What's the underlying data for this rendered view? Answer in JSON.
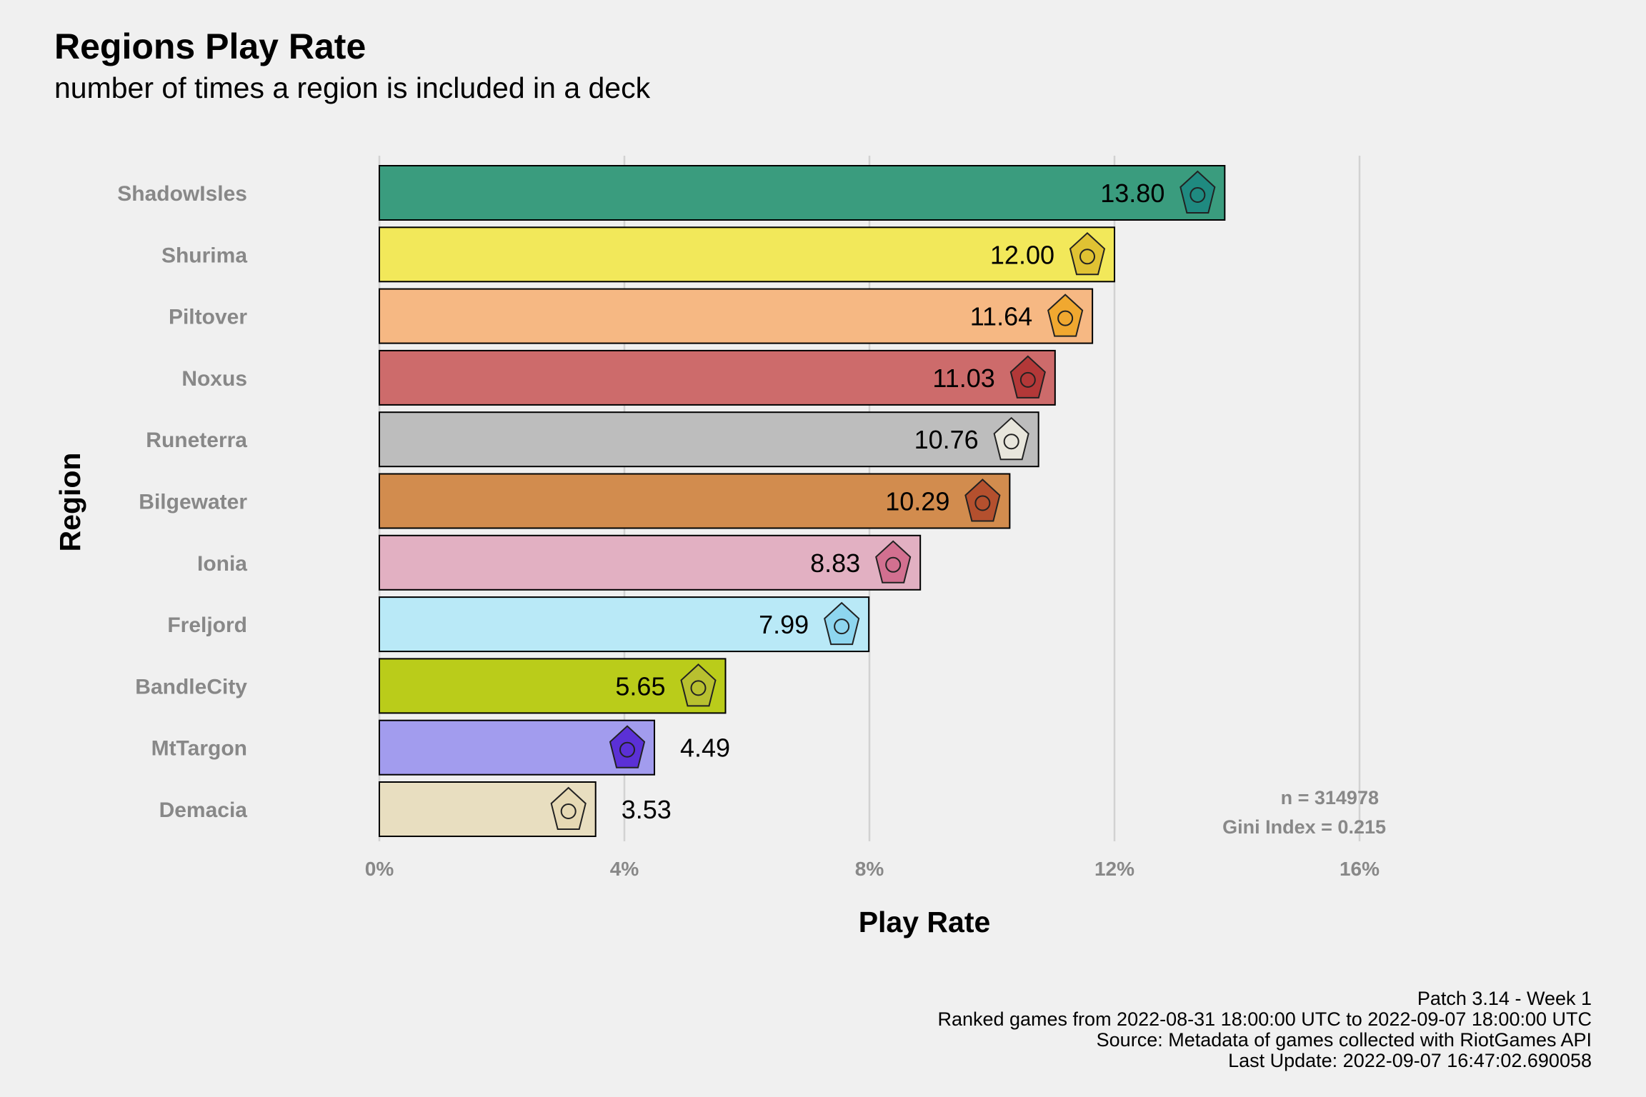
{
  "title": "Regions Play Rate",
  "subtitle": "number of times a region is included in a deck",
  "caption": [
    "Patch 3.14 - Week 1",
    "Ranked games from 2022-08-31 18:00:00 UTC to 2022-09-07 18:00:00 UTC",
    "Source: Metadata of games collected with RiotGames API",
    "Last Update: 2022-09-07 16:47:02.690058"
  ],
  "chart_data": {
    "type": "bar",
    "orientation": "horizontal",
    "xlabel": "Play Rate",
    "ylabel": "Region",
    "xlim": [
      0,
      16
    ],
    "xticks": [
      0,
      4,
      8,
      12,
      16
    ],
    "xtick_labels": [
      "0%",
      "4%",
      "8%",
      "12%",
      "16%"
    ],
    "grid": true,
    "categories": [
      "ShadowIsles",
      "Shurima",
      "Piltover",
      "Noxus",
      "Runeterra",
      "Bilgewater",
      "Ionia",
      "Freljord",
      "BandleCity",
      "MtTargon",
      "Demacia"
    ],
    "values": [
      13.8,
      12.0,
      11.64,
      11.03,
      10.76,
      10.29,
      8.83,
      7.99,
      5.65,
      4.49,
      3.53
    ],
    "value_labels": [
      "13.80",
      "12.00",
      "11.64",
      "11.03",
      "10.76",
      "10.29",
      "8.83",
      "7.99",
      "5.65",
      "4.49",
      "3.53"
    ],
    "colors": [
      "#3a9c7e",
      "#f2e85a",
      "#f6b883",
      "#cd6b6b",
      "#bdbdbd",
      "#d28c4e",
      "#e2b0c2",
      "#b9e9f7",
      "#bacc1a",
      "#a29cee",
      "#e8dec0"
    ],
    "icons": [
      "shadow-isles-icon",
      "shurima-icon",
      "piltover-icon",
      "noxus-icon",
      "runeterra-icon",
      "bilgewater-icon",
      "ionia-icon",
      "freljord-icon",
      "bandle-city-icon",
      "mt-targon-icon",
      "demacia-icon"
    ],
    "icon_colors": [
      "#1f8a80",
      "#e0c233",
      "#f0a830",
      "#b33838",
      "#e8e6dc",
      "#b4502e",
      "#d27090",
      "#8ed6ef",
      "#b8c030",
      "#5b30d6",
      "#e6d9b4"
    ],
    "annotations": [
      "n = 314978",
      "Gini Index = 0.215"
    ]
  }
}
